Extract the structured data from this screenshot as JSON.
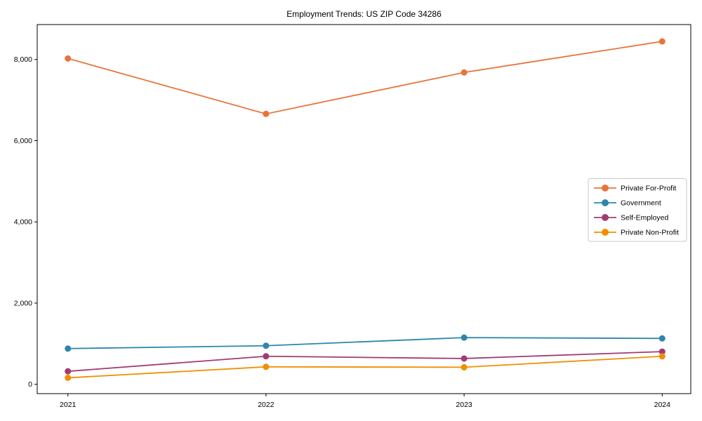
{
  "chart_data": {
    "type": "line",
    "title": "Employment Trends: US ZIP Code 34286",
    "xlabel": "",
    "ylabel": "",
    "categories": [
      "2021",
      "2022",
      "2023",
      "2024"
    ],
    "yticks": [
      0,
      2000,
      4000,
      6000,
      8000
    ],
    "ytick_labels": [
      "0",
      "2,000",
      "4,000",
      "6,000",
      "8,000"
    ],
    "ylim": [
      -230,
      8860
    ],
    "grid": false,
    "legend_position": "center-right",
    "background_color": "#ffffff",
    "axis_color": "#000000",
    "legend_border_color": "#c8c8c8",
    "series": [
      {
        "name": "Private For-Profit",
        "color": "#E8743B",
        "values": [
          8025,
          6660,
          7680,
          8445
        ]
      },
      {
        "name": "Government",
        "color": "#2E86AB",
        "values": [
          880,
          950,
          1150,
          1130
        ]
      },
      {
        "name": "Self-Employed",
        "color": "#A23B72",
        "values": [
          320,
          690,
          635,
          805
        ]
      },
      {
        "name": "Private Non-Profit",
        "color": "#F18F01",
        "values": [
          160,
          430,
          420,
          690
        ]
      }
    ]
  }
}
